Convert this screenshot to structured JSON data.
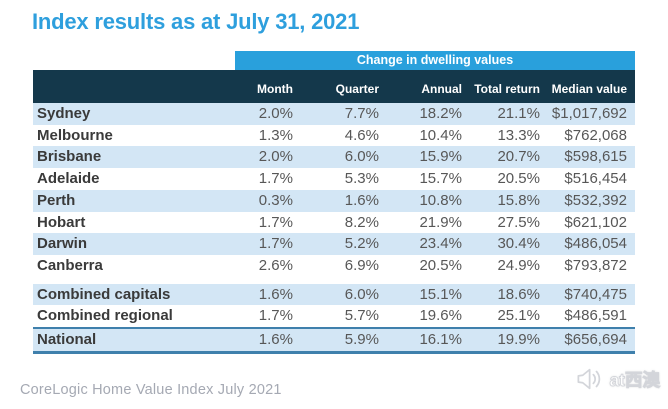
{
  "page": {
    "title": "Index results as at July 31, 2021"
  },
  "table": {
    "group_header": "Change in dwelling values",
    "columns": [
      "Month",
      "Quarter",
      "Annual",
      "Total return",
      "Median value"
    ],
    "sections": [
      {
        "name": "capital-cities",
        "rows": [
          {
            "name": "Sydney",
            "values": [
              "2.0%",
              "7.7%",
              "18.2%",
              "21.1%",
              "$1,017,692"
            ]
          },
          {
            "name": "Melbourne",
            "values": [
              "1.3%",
              "4.6%",
              "10.4%",
              "13.3%",
              "$762,068"
            ]
          },
          {
            "name": "Brisbane",
            "values": [
              "2.0%",
              "6.0%",
              "15.9%",
              "20.7%",
              "$598,615"
            ]
          },
          {
            "name": "Adelaide",
            "values": [
              "1.7%",
              "5.3%",
              "15.7%",
              "20.5%",
              "$516,454"
            ]
          },
          {
            "name": "Perth",
            "values": [
              "0.3%",
              "1.6%",
              "10.8%",
              "15.8%",
              "$532,392"
            ]
          },
          {
            "name": "Hobart",
            "values": [
              "1.7%",
              "8.2%",
              "21.9%",
              "27.5%",
              "$621,102"
            ]
          },
          {
            "name": "Darwin",
            "values": [
              "1.7%",
              "5.2%",
              "23.4%",
              "30.4%",
              "$486,054"
            ]
          },
          {
            "name": "Canberra",
            "values": [
              "2.6%",
              "6.9%",
              "20.5%",
              "24.9%",
              "$793,872"
            ]
          }
        ]
      },
      {
        "name": "aggregates",
        "rows": [
          {
            "name": "Combined capitals",
            "values": [
              "1.6%",
              "6.0%",
              "15.1%",
              "18.6%",
              "$740,475"
            ]
          },
          {
            "name": "Combined regional",
            "values": [
              "1.7%",
              "5.7%",
              "19.6%",
              "25.1%",
              "$486,591"
            ]
          },
          {
            "name": "National",
            "values": [
              "1.6%",
              "5.9%",
              "16.1%",
              "19.9%",
              "$656,694"
            ]
          }
        ]
      }
    ]
  },
  "footer": {
    "source": "CoreLogic Home Value Index July 2021"
  },
  "watermark": {
    "label": "at西澳",
    "icon": "megaphone-icon"
  },
  "colors": {
    "title_blue": "#2e9fdd",
    "band_blue": "#29a0dc",
    "header_navy": "#14384b",
    "row_blue": "#d3e6f5",
    "border_blue": "#3f80ac",
    "label_dark": "#3a3a3a",
    "value_gray": "#575757",
    "footer_gray": "#a5a9b3"
  }
}
